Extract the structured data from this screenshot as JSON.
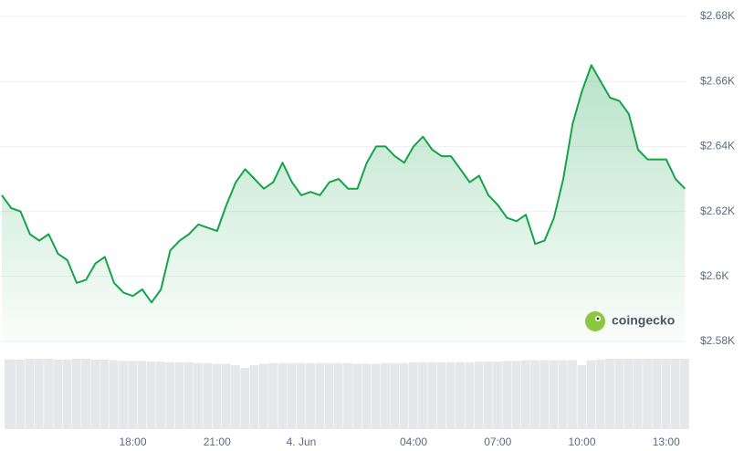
{
  "chart_data": {
    "type": "line",
    "watermark": "coingecko",
    "color": "#16a34a",
    "grid": true,
    "ylim": [
      2580,
      2680
    ],
    "yticks": [
      {
        "value": 2580,
        "label": "$2.58K"
      },
      {
        "value": 2600,
        "label": "$2.6K"
      },
      {
        "value": 2620,
        "label": "$2.62K"
      },
      {
        "value": 2640,
        "label": "$2.64K"
      },
      {
        "value": 2660,
        "label": "$2.66K"
      },
      {
        "value": 2680,
        "label": "$2.68K"
      }
    ],
    "categories": [
      null,
      null,
      null,
      null,
      null,
      null,
      null,
      null,
      null,
      null,
      null,
      null,
      null,
      null,
      "18:00",
      null,
      null,
      null,
      null,
      null,
      null,
      null,
      null,
      "21:00",
      null,
      null,
      null,
      null,
      null,
      null,
      null,
      null,
      "4. Jun",
      null,
      null,
      null,
      null,
      null,
      null,
      null,
      null,
      null,
      null,
      null,
      "04:00",
      null,
      null,
      null,
      null,
      null,
      null,
      null,
      null,
      "07:00",
      null,
      null,
      null,
      null,
      null,
      null,
      null,
      null,
      "10:00",
      null,
      null,
      null,
      null,
      null,
      null,
      null,
      null,
      "13:00",
      null,
      null
    ],
    "values": [
      2625,
      2621,
      2620,
      2613,
      2611,
      2613,
      2607,
      2605,
      2598,
      2599,
      2604,
      2606,
      2598,
      2595,
      2594,
      2596,
      2592,
      2596,
      2608,
      2611,
      2613,
      2616,
      2615,
      2614,
      2622,
      2629,
      2633,
      2630,
      2627,
      2629,
      2635,
      2629,
      2625,
      2626,
      2625,
      2629,
      2630,
      2627,
      2627,
      2635,
      2640,
      2640,
      2637,
      2635,
      2640,
      2643,
      2639,
      2637,
      2637,
      2633,
      2629,
      2631,
      2625,
      2622,
      2618,
      2617,
      2619,
      2610,
      2611,
      2618,
      2630,
      2647,
      2657,
      2665,
      2660,
      2655,
      2654,
      2650,
      2639,
      2636,
      2636,
      2636,
      2630,
      2627
    ],
    "volume": [
      98,
      98,
      98,
      99,
      99,
      99,
      98,
      98,
      99,
      99,
      98,
      98,
      97,
      96,
      96,
      96,
      95,
      95,
      94,
      94,
      94,
      93,
      93,
      92,
      92,
      90,
      86,
      90,
      92,
      93,
      93,
      93,
      93,
      93,
      93,
      93,
      93,
      93,
      92,
      92,
      92,
      93,
      93,
      93,
      94,
      94,
      94,
      94,
      94,
      94,
      94,
      95,
      95,
      95,
      96,
      96,
      97,
      97,
      97,
      97,
      97,
      97,
      90,
      97,
      98,
      99,
      99,
      99,
      99,
      99,
      99,
      99,
      99,
      99
    ]
  }
}
